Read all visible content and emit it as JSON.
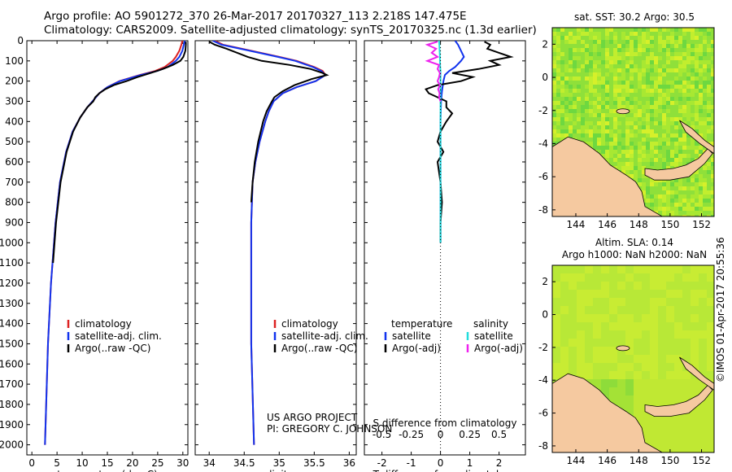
{
  "header": {
    "line1": "Argo profile: AO 5901272_370 26-Mar-2017 20170327_113 2.218S 147.475E",
    "line2": "Climatology: CARS2009. Satellite-adjusted climatology: synTS_20170325.nc (1.3d earlier)"
  },
  "colors": {
    "climatology": "#dd2222",
    "satellite": "#1133ee",
    "argo": "#000000",
    "sal_satellite": "#22dddd",
    "sal_argo": "#ee22ee",
    "land": "#f5c9a0"
  },
  "credit": {
    "line1": "US ARGO PROJECT",
    "line2": "PI: GREGORY C. JOHNSON"
  },
  "stamp": "©IMOS 01-Apr-2017 20:55:36",
  "chart_data": [
    {
      "type": "line",
      "name": "temperature-profile",
      "xlabel": "temperature (deg C)",
      "ylabel": "",
      "xlim": [
        -1,
        31
      ],
      "ylim": [
        2050,
        0
      ],
      "xticks": [
        0,
        5,
        10,
        15,
        20,
        25,
        30
      ],
      "yticks": [
        0,
        100,
        200,
        300,
        400,
        500,
        600,
        700,
        800,
        900,
        1000,
        1100,
        1200,
        1300,
        1400,
        1500,
        1600,
        1700,
        1800,
        1900,
        2000
      ],
      "legend": {
        "position": "lower-left",
        "entries": [
          "climatology",
          "satellite-adj. clim.",
          "Argo(..raw -QC)"
        ]
      },
      "series": [
        {
          "name": "climatology",
          "color": "#dd2222",
          "depth": [
            0,
            20,
            50,
            80,
            100,
            130,
            150,
            170,
            200,
            230,
            260,
            290,
            330,
            380,
            450,
            550,
            700,
            900,
            1200,
            1500,
            2000
          ],
          "values": [
            29.9,
            29.7,
            29.3,
            28.6,
            28.0,
            26.4,
            24.5,
            21.4,
            17.4,
            15.0,
            13.4,
            12.4,
            11.0,
            9.6,
            8.1,
            6.8,
            5.6,
            4.7,
            3.8,
            3.2,
            2.6
          ]
        },
        {
          "name": "satellite-adj. clim.",
          "color": "#1133ee",
          "depth": [
            0,
            20,
            50,
            80,
            100,
            130,
            150,
            170,
            200,
            230,
            260,
            290,
            330,
            380,
            450,
            550,
            700,
            900,
            1200,
            1500,
            2000
          ],
          "values": [
            30.4,
            30.2,
            29.9,
            29.3,
            28.6,
            27.0,
            24.9,
            21.6,
            17.5,
            15.0,
            13.4,
            12.4,
            11.0,
            9.6,
            8.1,
            6.8,
            5.6,
            4.7,
            3.8,
            3.2,
            2.6
          ]
        },
        {
          "name": "Argo(..raw -QC)",
          "color": "#000000",
          "depth": [
            5,
            20,
            50,
            80,
            100,
            120,
            140,
            160,
            180,
            200,
            220,
            240,
            260,
            280,
            300,
            330,
            380,
            450,
            550,
            700,
            900,
            1100
          ],
          "values": [
            30.6,
            30.6,
            30.5,
            30.1,
            29.5,
            28.0,
            26.0,
            23.6,
            21.0,
            18.8,
            16.3,
            14.6,
            13.4,
            12.6,
            12.2,
            11.0,
            9.6,
            8.2,
            6.9,
            5.7,
            4.8,
            4.2
          ]
        }
      ]
    },
    {
      "type": "line",
      "name": "salinity-profile",
      "xlabel": "salinity",
      "ylabel": "",
      "xlim": [
        33.8,
        36.1
      ],
      "ylim": [
        2050,
        0
      ],
      "xticks": [
        34,
        34.5,
        35,
        35.5,
        36
      ],
      "legend": {
        "position": "lower-right",
        "entries": [
          "climatology",
          "satellite-adj. clim.",
          "Argo(..raw -QC)"
        ]
      },
      "series": [
        {
          "name": "climatology",
          "color": "#dd2222",
          "depth": [
            0,
            20,
            50,
            80,
            100,
            130,
            150,
            170,
            200,
            230,
            260,
            300,
            350,
            400,
            500,
            600,
            700,
            900,
            1200,
            1500,
            2000
          ],
          "values": [
            34.08,
            34.2,
            34.6,
            35.0,
            35.25,
            35.5,
            35.62,
            35.66,
            35.52,
            35.25,
            35.05,
            34.92,
            34.85,
            34.8,
            34.72,
            34.66,
            34.62,
            34.6,
            34.6,
            34.6,
            34.64
          ]
        },
        {
          "name": "satellite-adj. clim.",
          "color": "#1133ee",
          "depth": [
            0,
            20,
            50,
            80,
            100,
            130,
            150,
            170,
            200,
            230,
            260,
            300,
            350,
            400,
            500,
            600,
            700,
            900,
            1200,
            1500,
            2000
          ],
          "values": [
            34.05,
            34.18,
            34.58,
            34.98,
            35.23,
            35.48,
            35.6,
            35.66,
            35.52,
            35.25,
            35.05,
            34.92,
            34.85,
            34.8,
            34.72,
            34.66,
            34.62,
            34.6,
            34.6,
            34.6,
            34.64
          ]
        },
        {
          "name": "Argo(..raw -QC)",
          "color": "#000000",
          "depth": [
            5,
            20,
            40,
            60,
            80,
            100,
            120,
            140,
            160,
            170,
            190,
            220,
            250,
            280,
            310,
            350,
            400,
            500,
            600,
            700,
            800
          ],
          "values": [
            34.0,
            34.08,
            34.25,
            34.4,
            34.55,
            34.75,
            35.15,
            35.45,
            35.62,
            35.68,
            35.46,
            35.22,
            35.05,
            34.93,
            34.88,
            34.82,
            34.77,
            34.7,
            34.65,
            34.62,
            34.6
          ]
        }
      ]
    },
    {
      "type": "line",
      "name": "difference-from-climatology",
      "xlabel": "T difference from climatology",
      "top_xlabel": "S difference from climatology",
      "xlim": [
        -2.6,
        2.9
      ],
      "ylim": [
        2050,
        0
      ],
      "xticks": [
        -2,
        -1,
        0,
        1,
        2
      ],
      "top_xticks": [
        "-0.5",
        "-0.25",
        "0",
        "0.25",
        "0.5"
      ],
      "legend": {
        "position": "lower-center",
        "temperature_header": "temperature",
        "salinity_header": "salinity",
        "entries": [
          "satellite",
          "Argo(-adj)",
          "satellite",
          "Argo(-adj)"
        ]
      },
      "series": [
        {
          "name": "temperature satellite",
          "color": "#1133ee",
          "depth": [
            0,
            20,
            50,
            80,
            100,
            130,
            150,
            170,
            200,
            250,
            300,
            400,
            500,
            700,
            1000
          ],
          "values": [
            0.5,
            0.6,
            0.7,
            0.8,
            0.7,
            0.5,
            0.3,
            0.15,
            0.1,
            0.05,
            0.02,
            0.0,
            0.0,
            0.0,
            0.0
          ]
        },
        {
          "name": "temperature Argo(-adj)",
          "color": "#000000",
          "depth": [
            5,
            20,
            40,
            60,
            80,
            100,
            120,
            140,
            160,
            180,
            200,
            220,
            240,
            260,
            280,
            300,
            330,
            360,
            400,
            450,
            500,
            550,
            600,
            700,
            800,
            900,
            1000
          ],
          "values": [
            1.5,
            1.7,
            1.6,
            2.0,
            2.4,
            1.7,
            2.0,
            1.3,
            0.4,
            1.1,
            0.7,
            -0.1,
            -0.5,
            -0.4,
            -0.1,
            0.2,
            0.2,
            0.4,
            0.2,
            0.0,
            -0.1,
            0.1,
            -0.1,
            0.0,
            0.05,
            0.0,
            0.0
          ]
        },
        {
          "name": "salinity satellite",
          "color": "#22dddd",
          "depth": [
            0,
            20,
            50,
            80,
            100,
            130,
            150,
            170,
            200,
            250,
            300,
            400,
            500,
            700,
            1000
          ],
          "values": [
            -0.05,
            -0.04,
            -0.03,
            -0.02,
            -0.02,
            -0.01,
            0.0,
            0.0,
            0.0,
            0.0,
            0.0,
            0.0,
            0.0,
            0.0,
            0.0
          ]
        },
        {
          "name": "salinity Argo(-adj)",
          "color": "#ee22ee",
          "depth": [
            5,
            20,
            40,
            60,
            80,
            100,
            120,
            140,
            160,
            180,
            200,
            220,
            240,
            260,
            280,
            300
          ],
          "values": [
            -0.1,
            -0.45,
            -0.15,
            -0.3,
            -0.1,
            -0.45,
            -0.05,
            -0.1,
            -0.02,
            -0.05,
            -0.1,
            -0.02,
            -0.08,
            -0.03,
            -0.05,
            0.0
          ]
        }
      ]
    },
    {
      "type": "heatmap",
      "name": "sst-map",
      "title": "sat. SST: 30.2 Argo: 30.5",
      "xlim": [
        142.5,
        152.8
      ],
      "ylim": [
        -8.4,
        3.0
      ],
      "xticks": [
        144,
        146,
        148,
        150,
        152
      ],
      "yticks": [
        -8,
        -6,
        -4,
        -2,
        0,
        2
      ],
      "profile_location": [
        147.475,
        -2.218
      ]
    },
    {
      "type": "heatmap",
      "name": "sla-map",
      "title_line1": "Altim. SLA: 0.14",
      "title_line2": "Argo h1000: NaN h2000: NaN",
      "xlim": [
        142.5,
        152.8
      ],
      "ylim": [
        -8.4,
        3.0
      ],
      "xticks": [
        144,
        146,
        148,
        150,
        152
      ],
      "yticks": [
        -8,
        -6,
        -4,
        -2,
        0,
        2
      ]
    }
  ]
}
